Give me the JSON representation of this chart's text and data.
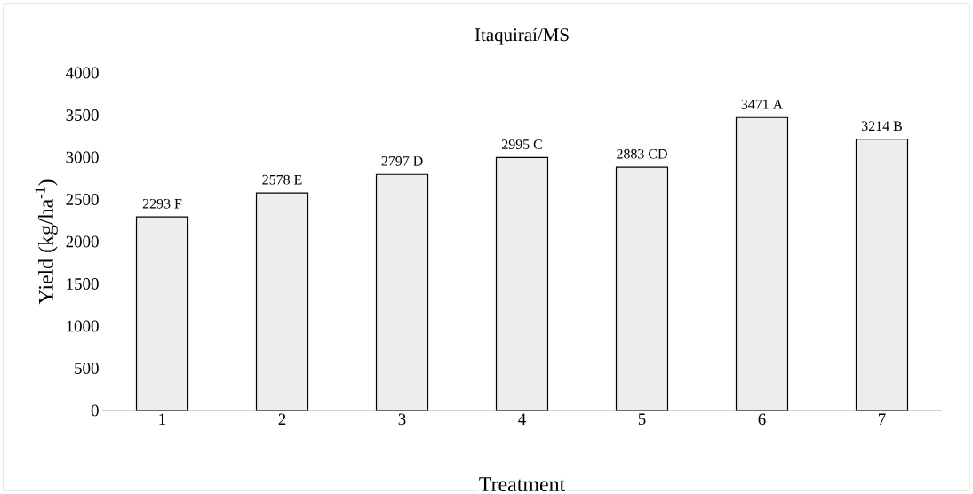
{
  "chart_data": {
    "type": "bar",
    "title": "Itaquiraí/MS",
    "xlabel": "Treatment",
    "ylabel": "Yield (kg/ha$^{-1}$)",
    "categories": [
      "1",
      "2",
      "3",
      "4",
      "5",
      "6",
      "7"
    ],
    "values": [
      2293,
      2578,
      2797,
      2995,
      2883,
      3471,
      3214
    ],
    "value_labels": [
      "2293 F",
      "2578 E",
      "2797 D",
      "2995 C",
      "2883 CD",
      "3471 A",
      "3214 B"
    ],
    "color": "#ededed",
    "ylim": [
      0,
      4000
    ],
    "yticks": [
      0,
      500,
      1000,
      1500,
      2000,
      2500,
      3000,
      3500,
      4000
    ],
    "grid": false
  }
}
